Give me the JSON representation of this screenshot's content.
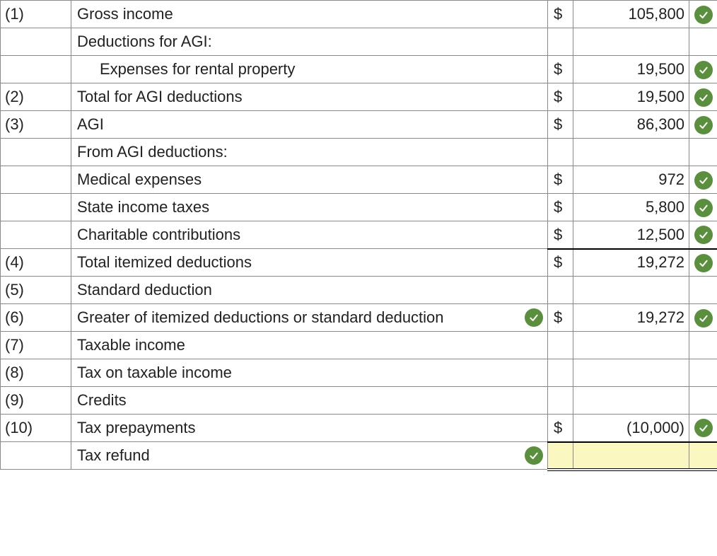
{
  "colors": {
    "border": "#8a8a8a",
    "text": "#222222",
    "check_bg": "#5a8f3d",
    "check_stroke": "#ffffff",
    "highlight_bg": "#fbf7c0",
    "underline": "#000000"
  },
  "currency_symbol": "$",
  "rows": [
    {
      "num": "(1)",
      "desc": "Gross income",
      "indent": false,
      "desc_check": false,
      "dollar": true,
      "amount": "105,800",
      "amt_check": true,
      "underline": false,
      "highlight": false,
      "dbl": false
    },
    {
      "num": "",
      "desc": "Deductions for AGI:",
      "indent": false,
      "desc_check": false,
      "dollar": false,
      "amount": "",
      "amt_check": false,
      "underline": false,
      "highlight": false,
      "dbl": false
    },
    {
      "num": "",
      "desc": "Expenses for rental property",
      "indent": true,
      "desc_check": false,
      "dollar": true,
      "amount": "19,500",
      "amt_check": true,
      "underline": false,
      "highlight": false,
      "dbl": false
    },
    {
      "num": "(2)",
      "desc": "Total for AGI deductions",
      "indent": false,
      "desc_check": false,
      "dollar": true,
      "amount": "19,500",
      "amt_check": true,
      "underline": false,
      "highlight": false,
      "dbl": false
    },
    {
      "num": "(3)",
      "desc": "AGI",
      "indent": false,
      "desc_check": false,
      "dollar": true,
      "amount": "86,300",
      "amt_check": true,
      "underline": false,
      "highlight": false,
      "dbl": false
    },
    {
      "num": "",
      "desc": "From AGI deductions:",
      "indent": false,
      "desc_check": false,
      "dollar": false,
      "amount": "",
      "amt_check": false,
      "underline": false,
      "highlight": false,
      "dbl": false
    },
    {
      "num": "",
      "desc": "Medical expenses",
      "indent": false,
      "desc_check": false,
      "dollar": true,
      "amount": "972",
      "amt_check": true,
      "underline": false,
      "highlight": false,
      "dbl": false
    },
    {
      "num": "",
      "desc": "State income taxes",
      "indent": false,
      "desc_check": false,
      "dollar": true,
      "amount": "5,800",
      "amt_check": true,
      "underline": false,
      "highlight": false,
      "dbl": false
    },
    {
      "num": "",
      "desc": "Charitable contributions",
      "indent": false,
      "desc_check": false,
      "dollar": true,
      "amount": "12,500",
      "amt_check": true,
      "underline": true,
      "highlight": false,
      "dbl": false
    },
    {
      "num": "(4)",
      "desc": "Total itemized deductions",
      "indent": false,
      "desc_check": false,
      "dollar": true,
      "amount": "19,272",
      "amt_check": true,
      "underline": false,
      "highlight": false,
      "dbl": false
    },
    {
      "num": "(5)",
      "desc": "Standard deduction",
      "indent": false,
      "desc_check": false,
      "dollar": false,
      "amount": "",
      "amt_check": false,
      "underline": false,
      "highlight": false,
      "dbl": false
    },
    {
      "num": "(6)",
      "desc": "Greater of itemized deductions or standard deduction",
      "indent": false,
      "desc_check": true,
      "dollar": true,
      "amount": "19,272",
      "amt_check": true,
      "underline": false,
      "highlight": false,
      "dbl": false
    },
    {
      "num": "(7)",
      "desc": "Taxable income",
      "indent": false,
      "desc_check": false,
      "dollar": false,
      "amount": "",
      "amt_check": false,
      "underline": false,
      "highlight": false,
      "dbl": false
    },
    {
      "num": "(8)",
      "desc": "Tax on taxable income",
      "indent": false,
      "desc_check": false,
      "dollar": false,
      "amount": "",
      "amt_check": false,
      "underline": false,
      "highlight": false,
      "dbl": false
    },
    {
      "num": "(9)",
      "desc": "Credits",
      "indent": false,
      "desc_check": false,
      "dollar": false,
      "amount": "",
      "amt_check": false,
      "underline": false,
      "highlight": false,
      "dbl": false
    },
    {
      "num": "(10)",
      "desc": "Tax prepayments",
      "indent": false,
      "desc_check": false,
      "dollar": true,
      "amount": "(10,000)",
      "amt_check": true,
      "underline": true,
      "highlight": false,
      "dbl": false
    },
    {
      "num": "",
      "desc": "Tax refund",
      "indent": false,
      "desc_check": true,
      "dollar": false,
      "amount": "",
      "amt_check": false,
      "underline": false,
      "highlight": true,
      "dbl": true
    }
  ]
}
